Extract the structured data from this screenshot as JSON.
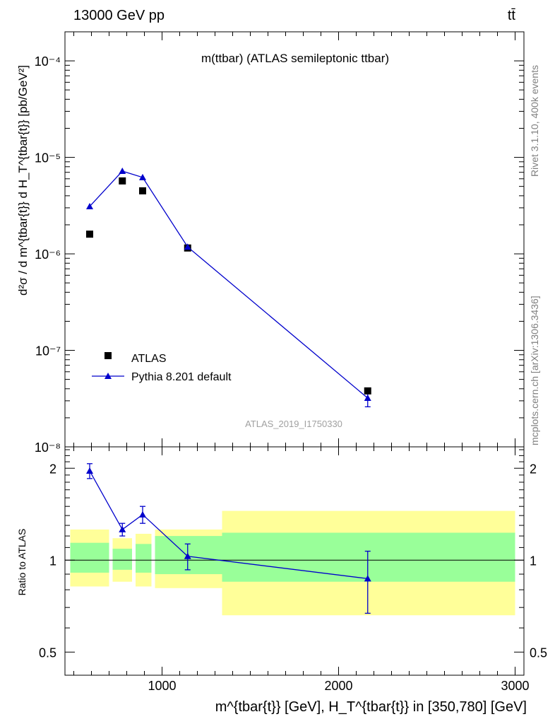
{
  "header": {
    "beam": "13000 GeV pp",
    "process": "tt̄"
  },
  "side_text": {
    "rivet": "Rivet 3.1.10,  400k events",
    "mcplots": "mcplots.cern.ch [arXiv:1306.3436]"
  },
  "chart_data": [
    {
      "type": "scatter",
      "title": "m(ttbar) (ATLAS semileptonic ttbar)",
      "watermark": "ATLAS_2019_I1750330",
      "ylabel": "d²σ / d m^{tbar{t}} d H_T^{tbar{t}} [pb/GeV²]",
      "yscale": "log",
      "ylim": [
        1e-08,
        0.0002
      ],
      "xlim": [
        450,
        3050
      ],
      "ytick_labels": [
        "10⁻⁸",
        "10⁻⁷",
        "10⁻⁶",
        "10⁻⁵",
        "10⁻⁴"
      ],
      "legend_position": "bottom-left",
      "series": [
        {
          "name": "ATLAS",
          "marker": "square",
          "color": "#000000",
          "x": [
            590,
            775,
            890,
            1145,
            2165
          ],
          "y": [
            1.6e-06,
            5.7e-06,
            4.5e-06,
            1.15e-06,
            3.8e-08
          ]
        },
        {
          "name": "Pythia 8.201 default",
          "marker": "triangle",
          "color": "#0000cc",
          "x": [
            590,
            775,
            890,
            1145,
            2165
          ],
          "y": [
            3.1e-06,
            7.2e-06,
            6.2e-06,
            1.18e-06,
            3.2e-08
          ],
          "yerr": [
            0,
            0,
            0,
            0,
            6e-09
          ]
        }
      ]
    },
    {
      "type": "line",
      "ylabel": "Ratio to ATLAS",
      "yscale": "log",
      "ylim": [
        0.42,
        2.35
      ],
      "ytick_labels": [
        "0.5",
        "1",
        "2"
      ],
      "xlabel": "m^{tbar{t}} [GeV], H_T^{tbar{t}} in [350,780] [GeV]",
      "xtick_labels": [
        "1000",
        "2000",
        "3000"
      ],
      "reference_line": 1,
      "bands": {
        "edges": [
          480,
          700,
          720,
          830,
          850,
          940,
          960,
          1340,
          3000
        ],
        "inner": [
          [
            0.91,
            1.14
          ],
          [
            0.93,
            1.09
          ],
          [
            0.91,
            1.13
          ],
          [
            0.9,
            1.2
          ],
          [
            0.85,
            1.23
          ]
        ],
        "outer": [
          [
            0.82,
            1.26
          ],
          [
            0.85,
            1.18
          ],
          [
            0.82,
            1.22
          ],
          [
            0.81,
            1.26
          ],
          [
            0.66,
            1.45
          ]
        ],
        "inner_color": "#99ff99",
        "outer_color": "#ffff99"
      },
      "series": [
        {
          "name": "Pythia 8.201 default",
          "color": "#0000cc",
          "x": [
            590,
            775,
            890,
            1145,
            2165
          ],
          "y": [
            1.96,
            1.26,
            1.41,
            1.03,
            0.87
          ],
          "yerr": [
            0.11,
            0.06,
            0.09,
            0.1,
            0.2
          ]
        }
      ]
    }
  ]
}
